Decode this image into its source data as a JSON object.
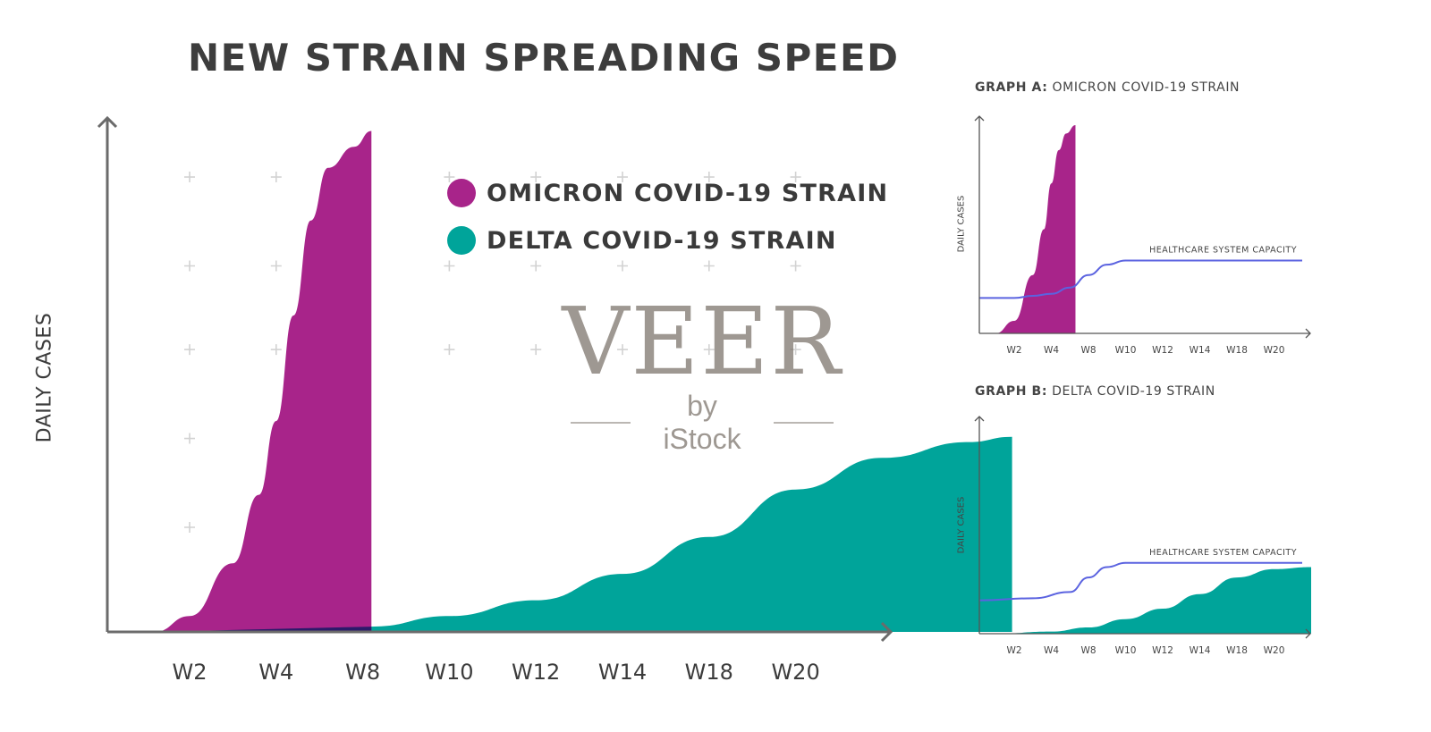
{
  "watermark": {
    "brand": "VEER",
    "sub": "by iStock"
  },
  "chart_data": [
    {
      "type": "area",
      "title": "NEW STRAIN SPREADING SPEED",
      "xlabel": "",
      "ylabel": "DAILY CASES",
      "categories": [
        "W2",
        "W4",
        "W8",
        "W10",
        "W12",
        "W14",
        "W18",
        "W20"
      ],
      "ylim": [
        0,
        100
      ],
      "grid": "plus-markers",
      "legend": "top-right",
      "series": [
        {
          "name": "OMICRON COVID-19 STRAIN",
          "color": "#a8248a",
          "points": [
            [
              0.6,
              0
            ],
            [
              1.0,
              3
            ],
            [
              1.5,
              13
            ],
            [
              1.8,
              26
            ],
            [
              2.0,
              40
            ],
            [
              2.2,
              60
            ],
            [
              2.4,
              78
            ],
            [
              2.6,
              88
            ],
            [
              2.9,
              92
            ],
            [
              3.1,
              95
            ]
          ]
        },
        {
          "name": "DELTA COVID-19 STRAIN",
          "color": "#00a49a",
          "points": [
            [
              0.6,
              0
            ],
            [
              3.1,
              1
            ],
            [
              4,
              3
            ],
            [
              5,
              6
            ],
            [
              6,
              11
            ],
            [
              7,
              18
            ],
            [
              8,
              27
            ],
            [
              9,
              33
            ],
            [
              10,
              36
            ],
            [
              10.5,
              37
            ]
          ]
        }
      ]
    },
    {
      "type": "area",
      "title": "GRAPH A: OMICRON COVID-19 STRAIN",
      "title_bold": "GRAPH A:",
      "title_rest": "OMICRON COVID-19 STRAIN",
      "ylabel": "DAILY CASES",
      "categories": [
        "W2",
        "W4",
        "W8",
        "W10",
        "W12",
        "W14",
        "W18",
        "W20"
      ],
      "ylim": [
        0,
        100
      ],
      "capacity_label": "HEALTHCARE SYSTEM CAPACITY",
      "series": [
        {
          "name": "OMICRON COVID-19 STRAIN",
          "color": "#a8248a",
          "points": [
            [
              0.5,
              0
            ],
            [
              1,
              6
            ],
            [
              1.5,
              28
            ],
            [
              1.8,
              50
            ],
            [
              2.0,
              72
            ],
            [
              2.2,
              88
            ],
            [
              2.4,
              96
            ],
            [
              2.65,
              100
            ]
          ]
        },
        {
          "name": "HEALTHCARE SYSTEM CAPACITY",
          "color": "#5b63e0",
          "kind": "line",
          "points": [
            [
              0,
              17
            ],
            [
              1,
              17
            ],
            [
              1.5,
              18
            ],
            [
              2,
              19
            ],
            [
              2.5,
              22
            ],
            [
              3,
              28
            ],
            [
              3.5,
              33
            ],
            [
              4,
              35
            ],
            [
              4.5,
              35
            ],
            [
              9,
              35
            ]
          ]
        }
      ]
    },
    {
      "type": "area",
      "title": "GRAPH B: DELTA COVID-19 STRAIN",
      "title_bold": "GRAPH B:",
      "title_rest": "DELTA COVID-19 STRAIN",
      "ylabel": "DAILY CASES",
      "categories": [
        "W2",
        "W4",
        "W8",
        "W10",
        "W12",
        "W14",
        "W18",
        "W20"
      ],
      "ylim": [
        0,
        100
      ],
      "capacity_label": "HEALTHCARE SYSTEM CAPACITY",
      "series": [
        {
          "name": "DELTA COVID-19 STRAIN",
          "color": "#00a49a",
          "points": [
            [
              0.5,
              0
            ],
            [
              2,
              1
            ],
            [
              3,
              3
            ],
            [
              4,
              7
            ],
            [
              5,
              12
            ],
            [
              6,
              19
            ],
            [
              7,
              27
            ],
            [
              8,
              31
            ],
            [
              9,
              32
            ]
          ]
        },
        {
          "name": "HEALTHCARE SYSTEM CAPACITY",
          "color": "#5b63e0",
          "kind": "line",
          "points": [
            [
              0,
              16
            ],
            [
              1.5,
              17
            ],
            [
              2.5,
              20
            ],
            [
              3,
              27
            ],
            [
              3.5,
              32
            ],
            [
              4,
              34
            ],
            [
              9,
              34
            ]
          ]
        }
      ]
    }
  ]
}
